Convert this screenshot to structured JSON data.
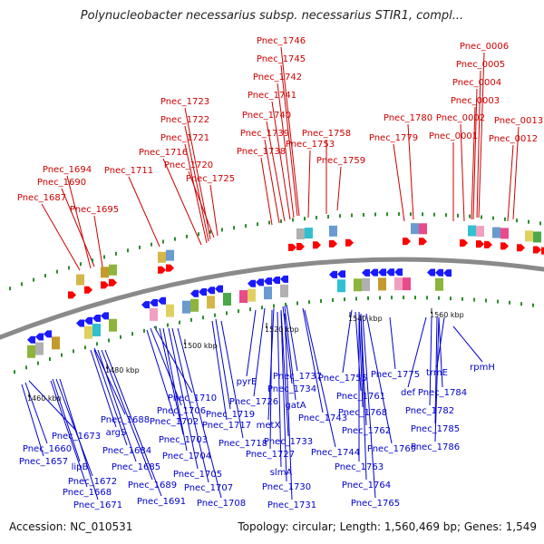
{
  "title": "Polynucleobacter necessarius subsp. necessarius STIR1, compl...",
  "footer": {
    "accession": "Accession: NC_010531",
    "summary": "Topology: circular; Length: 1,560,469 bp; Genes: 1,549"
  },
  "scale_labels": [
    "1460 kbp",
    "1480 kbp",
    "1500 kbp",
    "1520 kbp",
    "1540 kbp",
    "1560 kbp"
  ],
  "colors": {
    "outer_labels": "#cc0000",
    "inner_labels": "#0000cc",
    "backbone": "#888888",
    "tick": "#2e8b2e"
  },
  "outer_labels": [
    "Pnec_1746",
    "Pnec_1745",
    "Pnec_1742",
    "Pnec_1741",
    "Pnec_1740",
    "Pnec_1739",
    "Pnec_1738",
    "Pnec_1753",
    "Pnec_1758",
    "Pnec_1759",
    "Pnec_1723",
    "Pnec_1722",
    "Pnec_1721",
    "Pnec_1716",
    "Pnec_1720",
    "Pnec_1725",
    "Pnec_1711",
    "Pnec_1694",
    "Pnec_1690",
    "Pnec_1687",
    "Pnec_1695",
    "Pnec_1780",
    "Pnec_1779",
    "Pnec_0006",
    "Pnec_0005",
    "Pnec_0004",
    "Pnec_0003",
    "Pnec_0002",
    "Pnec_0001",
    "Pnec_0013",
    "Pnec_0012"
  ],
  "inner_labels": [
    "rpmH",
    "trmE",
    "def",
    "Pnec_1784",
    "Pnec_1782",
    "Pnec_1785",
    "Pnec_1786",
    "Pnec_1775",
    "Pnec_1755",
    "Pnec_1761",
    "Pnec_1768",
    "Pnec_1762",
    "Pnec_1769",
    "Pnec_1763",
    "Pnec_1764",
    "Pnec_1765",
    "Pnec_1737",
    "Pnec_1734",
    "pyrE",
    "Pnec_1726",
    "gatA",
    "Pnec_1743",
    "metX",
    "Pnec_1733",
    "Pnec_1727",
    "slmA",
    "Pnec_1730",
    "Pnec_1731",
    "Pnec_1744",
    "Pnec_1719",
    "Pnec_1717",
    "Pnec_1718",
    "Pnec_1710",
    "Pnec_1706",
    "Pnec_1702",
    "Pnec_1703",
    "Pnec_1704",
    "Pnec_1705",
    "Pnec_1707",
    "Pnec_1708",
    "Pnec_1688",
    "argS",
    "Pnec_1684",
    "Pnec_1685",
    "Pnec_1689",
    "Pnec_1691",
    "Pnec_1673",
    "Pnec_1660",
    "Pnec_1657",
    "lipB",
    "Pnec_1672",
    "Pnec_1668",
    "Pnec_1671"
  ]
}
